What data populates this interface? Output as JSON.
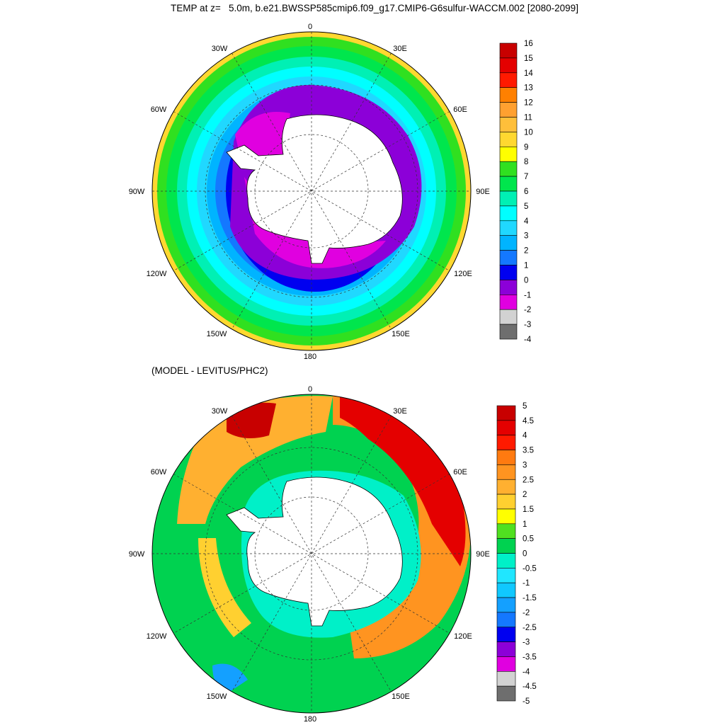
{
  "title": "TEMP at z=   5.0m, b.e21.BWSSP585cmip6.f09_g17.CMIP6-G6sulfur-WACCM.002 [2080-2099]",
  "map_top": {
    "lon_labels": [
      "0",
      "30E",
      "60E",
      "90E",
      "120E",
      "150E",
      "180",
      "150W",
      "120W",
      "90W",
      "60W",
      "30W"
    ],
    "colorbar": {
      "labels": [
        "16",
        "15",
        "14",
        "13",
        "12",
        "11",
        "10",
        "9",
        "8",
        "7",
        "6",
        "5",
        "4",
        "3",
        "2",
        "1",
        "0",
        "-1",
        "-2",
        "-3",
        "-4"
      ],
      "colors": [
        "#c80000",
        "#e40000",
        "#ff1a00",
        "#ff8000",
        "#ffa030",
        "#ffbf3a",
        "#ffd830",
        "#ffff00",
        "#30e020",
        "#00e64d",
        "#00f0b4",
        "#00ffff",
        "#20d8ff",
        "#00b4ff",
        "#1478ff",
        "#0000f0",
        "#8c00d8",
        "#e000e0",
        "#d2d2d2",
        "#6e6e6e"
      ]
    }
  },
  "map_bottom": {
    "subtitle": "(MODEL - LEVITUS/PHC2)",
    "lon_labels": [
      "0",
      "30E",
      "60E",
      "90E",
      "120E",
      "150E",
      "180",
      "150W",
      "120W",
      "90W",
      "60W",
      "30W"
    ],
    "colorbar": {
      "labels": [
        "5",
        "4.5",
        "4",
        "3.5",
        "3",
        "2.5",
        "2",
        "1.5",
        "1",
        "0.5",
        "0",
        "-0.5",
        "-1",
        "-1.5",
        "-2",
        "-2.5",
        "-3",
        "-3.5",
        "-4",
        "-4.5",
        "-5"
      ],
      "colors": [
        "#c80000",
        "#e40000",
        "#ff1a00",
        "#ff7a10",
        "#ff9420",
        "#ffb030",
        "#ffd030",
        "#ffff00",
        "#50e020",
        "#00d250",
        "#00f0c8",
        "#20e6ff",
        "#10c8ff",
        "#14a0ff",
        "#1478ff",
        "#0000f0",
        "#8c00d8",
        "#e000e0",
        "#d2d2d2",
        "#6e6e6e"
      ]
    }
  }
}
